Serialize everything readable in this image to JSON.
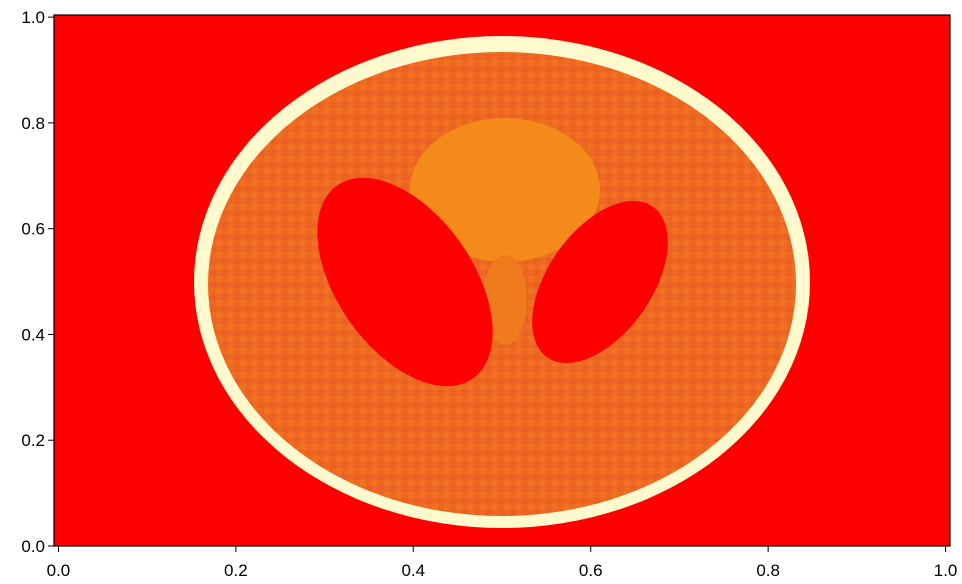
{
  "chart_data": {
    "type": "image",
    "xlim": [
      -0.005,
      1.005
    ],
    "ylim": [
      0,
      1.004
    ],
    "xticks": [
      {
        "value": 0,
        "label": "0.0"
      },
      0.2,
      0.4,
      0.6,
      0.8,
      {
        "value": 1,
        "label": "1.0"
      }
    ],
    "yticks": [
      {
        "value": 0,
        "label": "0.0"
      },
      0.2,
      0.4,
      0.6,
      0.8,
      {
        "value": 1,
        "label": "1.0"
      }
    ]
  }
}
